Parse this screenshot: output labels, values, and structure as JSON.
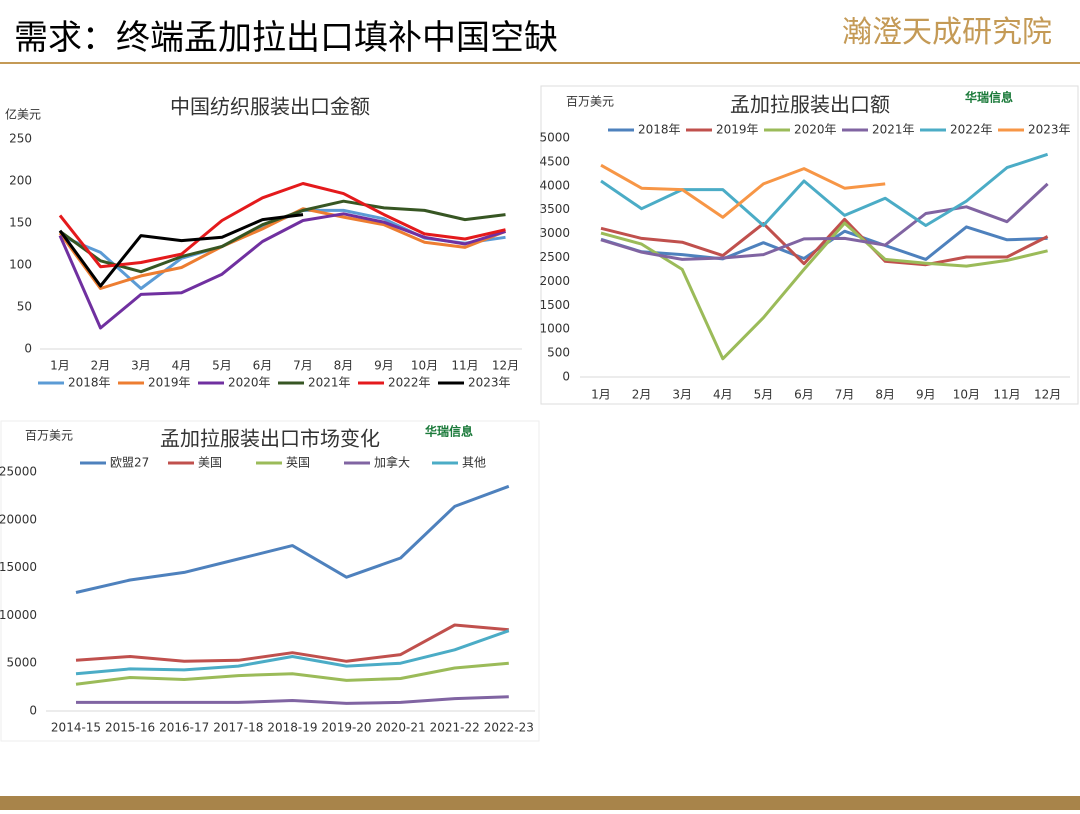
{
  "header": {
    "title": "需求：终端孟加拉出口填补中国空缺",
    "logo": "瀚澄天成研究院"
  },
  "chart_data": [
    {
      "type": "line",
      "title": "中国纺织服装出口金额",
      "y_label": "亿美元",
      "categories": [
        "1月",
        "2月",
        "3月",
        "4月",
        "5月",
        "6月",
        "7月",
        "8月",
        "9月",
        "10月",
        "11月",
        "12月"
      ],
      "ylim": [
        0,
        250
      ],
      "yticks": [
        0,
        50,
        100,
        150,
        200,
        250
      ],
      "legend": "bottom",
      "series": [
        {
          "name": "2018年",
          "color": "#5b9bd5",
          "values": [
            135,
            115,
            72,
            108,
            122,
            145,
            165,
            165,
            155,
            132,
            126,
            133
          ]
        },
        {
          "name": "2019年",
          "color": "#ed7d31",
          "values": [
            138,
            72,
            87,
            97,
            122,
            143,
            167,
            157,
            148,
            127,
            121,
            140
          ]
        },
        {
          "name": "2020年",
          "color": "#7030a0",
          "values": [
            135,
            25,
            65,
            67,
            89,
            128,
            153,
            161,
            151,
            133,
            125,
            140
          ]
        },
        {
          "name": "2021年",
          "color": "#375623",
          "values": [
            140,
            105,
            92,
            110,
            122,
            148,
            165,
            176,
            168,
            165,
            154,
            160
          ]
        },
        {
          "name": "2022年",
          "color": "#e41a1c",
          "values": [
            159,
            98,
            103,
            113,
            153,
            180,
            197,
            185,
            160,
            137,
            131,
            142
          ]
        },
        {
          "name": "2023年",
          "color": "#000000",
          "values": [
            141,
            75,
            135,
            129,
            133,
            154,
            160,
            null,
            null,
            null,
            null,
            null
          ]
        }
      ]
    },
    {
      "type": "line",
      "title": "孟加拉服装出口额",
      "y_label": "百万美元",
      "source": "华瑞信息",
      "categories": [
        "1月",
        "2月",
        "3月",
        "4月",
        "5月",
        "6月",
        "7月",
        "8月",
        "9月",
        "10月",
        "11月",
        "12月"
      ],
      "ylim": [
        0,
        5000
      ],
      "yticks": [
        0,
        500,
        1000,
        1500,
        2000,
        2500,
        3000,
        3500,
        4000,
        4500,
        5000
      ],
      "legend": "top",
      "series": [
        {
          "name": "2018年",
          "color": "#4e81bd",
          "values": [
            2880,
            2620,
            2560,
            2470,
            2810,
            2480,
            3050,
            2750,
            2460,
            3140,
            2870,
            2900
          ]
        },
        {
          "name": "2019年",
          "color": "#c0504d",
          "values": [
            3110,
            2900,
            2820,
            2540,
            3210,
            2370,
            3300,
            2420,
            2350,
            2510,
            2510,
            2940
          ]
        },
        {
          "name": "2020年",
          "color": "#9bbb59",
          "values": [
            3010,
            2780,
            2250,
            380,
            1240,
            2250,
            3220,
            2460,
            2380,
            2320,
            2440,
            2640
          ]
        },
        {
          "name": "2021年",
          "color": "#8064a2",
          "values": [
            2870,
            2610,
            2460,
            2490,
            2560,
            2890,
            2900,
            2760,
            3420,
            3560,
            3250,
            4040
          ]
        },
        {
          "name": "2022年",
          "color": "#4bacc6",
          "values": [
            4100,
            3520,
            3920,
            3920,
            3170,
            4100,
            3380,
            3740,
            3170,
            3680,
            4380,
            4660
          ]
        },
        {
          "name": "2023年",
          "color": "#f79646",
          "values": [
            4430,
            3950,
            3920,
            3340,
            4040,
            4360,
            3950,
            4040,
            null,
            null,
            null,
            null
          ]
        }
      ]
    },
    {
      "type": "line",
      "title": "孟加拉服装出口市场变化",
      "y_label": "百万美元",
      "source": "华瑞信息",
      "categories": [
        "2014-15",
        "2015-16",
        "2016-17",
        "2017-18",
        "2018-19",
        "2019-20",
        "2020-21",
        "2021-22",
        "2022-23"
      ],
      "ylim": [
        0,
        25000
      ],
      "yticks": [
        0,
        5000,
        10000,
        15000,
        20000,
        25000
      ],
      "legend": "top",
      "series": [
        {
          "name": "欧盟27",
          "color": "#4e81bd",
          "values": [
            12400,
            13700,
            14500,
            15900,
            17300,
            14000,
            16000,
            21400,
            23500
          ]
        },
        {
          "name": "美国",
          "color": "#c0504d",
          "values": [
            5300,
            5700,
            5200,
            5300,
            6100,
            5200,
            5900,
            9000,
            8500
          ]
        },
        {
          "name": "英国",
          "color": "#9bbb59",
          "values": [
            2800,
            3500,
            3300,
            3700,
            3900,
            3200,
            3400,
            4500,
            5000
          ]
        },
        {
          "name": "加拿大",
          "color": "#8064a2",
          "values": [
            900,
            900,
            900,
            900,
            1100,
            800,
            900,
            1300,
            1500
          ]
        },
        {
          "name": "其他",
          "color": "#4bacc6",
          "values": [
            3900,
            4400,
            4300,
            4700,
            5700,
            4700,
            5000,
            6400,
            8400
          ]
        }
      ]
    }
  ]
}
